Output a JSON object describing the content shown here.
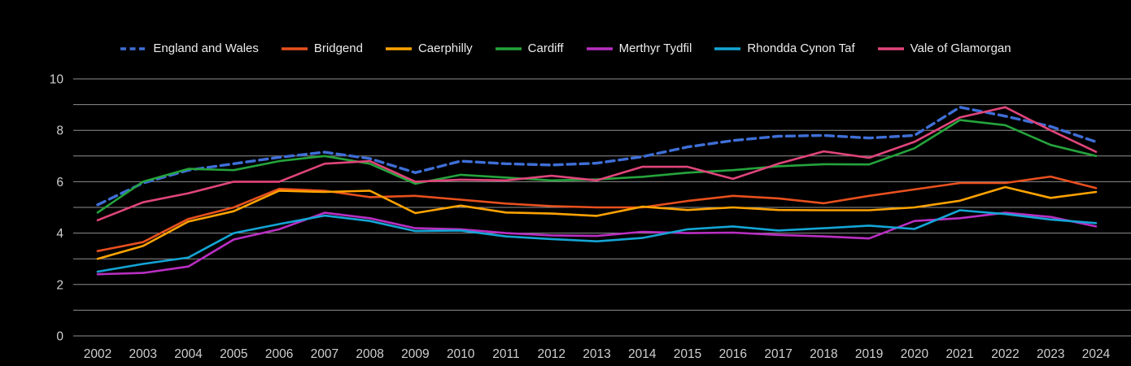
{
  "chart": {
    "background_color": "#000000",
    "grid_color": "#8f8f8f",
    "tick_label_color": "#cfcfcf",
    "legend_text_color": "#ececec"
  },
  "chart_data": {
    "type": "line",
    "title": "",
    "xlabel": "",
    "ylabel": "",
    "ylim": [
      0,
      10
    ],
    "yticks_labeled": [
      0,
      2,
      4,
      6,
      8,
      10
    ],
    "grid": true,
    "grid_interval": 1,
    "legend_position": "top-center",
    "x": [
      2002,
      2003,
      2004,
      2005,
      2006,
      2007,
      2008,
      2009,
      2010,
      2011,
      2012,
      2013,
      2014,
      2015,
      2016,
      2017,
      2018,
      2019,
      2020,
      2021,
      2022,
      2023,
      2024
    ],
    "series": [
      {
        "name": "England and Wales",
        "color": "#3f6fd7",
        "dashed": true,
        "values": [
          5.1,
          5.95,
          6.45,
          6.7,
          6.95,
          7.15,
          6.9,
          6.35,
          6.8,
          6.7,
          6.65,
          6.72,
          6.97,
          7.35,
          7.6,
          7.77,
          7.8,
          7.7,
          7.8,
          8.9,
          8.55,
          8.15,
          7.55
        ]
      },
      {
        "name": "Bridgend",
        "color": "#e8501e",
        "dashed": false,
        "values": [
          3.3,
          3.65,
          4.55,
          5.0,
          5.72,
          5.65,
          5.4,
          5.45,
          5.3,
          5.15,
          5.05,
          5.0,
          5.0,
          5.25,
          5.45,
          5.35,
          5.16,
          5.45,
          5.7,
          5.95,
          5.95,
          6.2,
          5.75
        ]
      },
      {
        "name": "Caerphilly",
        "color": "#ffa300",
        "dashed": false,
        "values": [
          3.0,
          3.5,
          4.45,
          4.85,
          5.65,
          5.6,
          5.65,
          4.78,
          5.07,
          4.8,
          4.76,
          4.67,
          5.03,
          4.9,
          5.0,
          4.9,
          4.89,
          4.89,
          5.0,
          5.26,
          5.79,
          5.37,
          5.6
        ]
      },
      {
        "name": "Cardiff",
        "color": "#25a33c",
        "dashed": false,
        "values": [
          4.8,
          6.0,
          6.5,
          6.45,
          6.8,
          7.0,
          6.7,
          5.92,
          6.27,
          6.16,
          6.05,
          6.09,
          6.19,
          6.35,
          6.45,
          6.6,
          6.68,
          6.67,
          7.3,
          8.4,
          8.2,
          7.43,
          7.0
        ]
      },
      {
        "name": "Merthyr Tydfil",
        "color": "#b92fc2",
        "dashed": false,
        "values": [
          2.4,
          2.45,
          2.7,
          3.75,
          4.15,
          4.79,
          4.58,
          4.19,
          4.15,
          4.0,
          3.91,
          3.89,
          4.05,
          4.0,
          4.02,
          3.93,
          3.87,
          3.79,
          4.47,
          4.58,
          4.79,
          4.63,
          4.26
        ]
      },
      {
        "name": "Rhondda Cynon Taf",
        "color": "#14a5d5",
        "dashed": false,
        "values": [
          2.5,
          2.8,
          3.05,
          4.0,
          4.35,
          4.68,
          4.47,
          4.08,
          4.1,
          3.87,
          3.77,
          3.68,
          3.81,
          4.15,
          4.26,
          4.1,
          4.19,
          4.29,
          4.16,
          4.89,
          4.74,
          4.53,
          4.39
        ]
      },
      {
        "name": "Vale of Glamorgan",
        "color": "#e0457b",
        "dashed": false,
        "values": [
          4.5,
          5.2,
          5.55,
          6.0,
          6.0,
          6.7,
          6.8,
          6.0,
          6.08,
          6.05,
          6.23,
          6.05,
          6.58,
          6.58,
          6.11,
          6.7,
          7.18,
          6.93,
          7.55,
          8.5,
          8.9,
          8.0,
          7.16
        ]
      }
    ]
  }
}
